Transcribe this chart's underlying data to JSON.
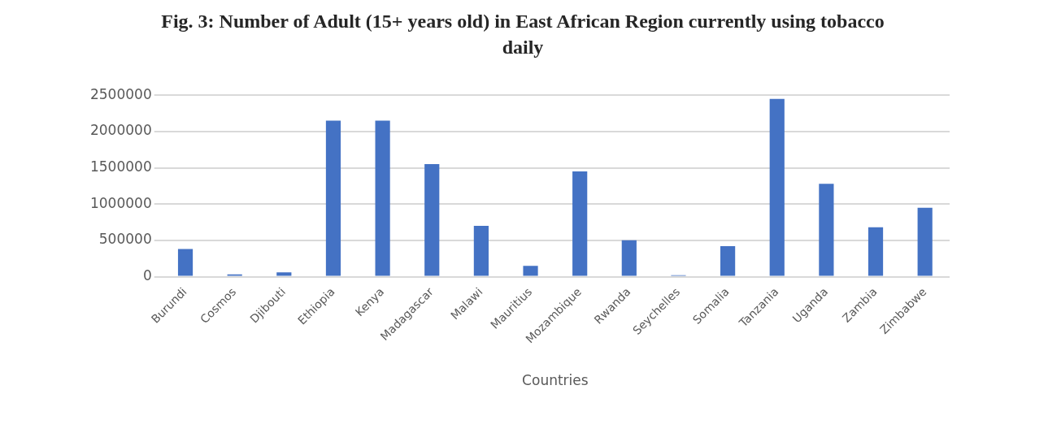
{
  "chart_data": {
    "type": "bar",
    "title": "Fig. 3: Number of Adult (15+ years old) in East African Region currently using tobacco daily",
    "xlabel": "Countries",
    "categories": [
      "Burundi",
      "Cosmos",
      "Djibouti",
      "Ethiopia",
      "Kenya",
      "Madagascar",
      "Malawi",
      "Mauritius",
      "Mozambique",
      "Rwanda",
      "Seychelles",
      "Somalia",
      "Tanzania",
      "Uganda",
      "Zambia",
      "Zimbabwe"
    ],
    "values": [
      380000,
      30000,
      60000,
      2150000,
      2150000,
      1550000,
      700000,
      150000,
      1450000,
      500000,
      20000,
      420000,
      2450000,
      1280000,
      680000,
      950000
    ],
    "color": "#4472c4",
    "ylim": [
      0,
      2500000
    ],
    "yticks": [
      0,
      500000,
      1000000,
      1500000,
      2000000,
      2500000
    ],
    "grid": "y",
    "legend": false
  }
}
